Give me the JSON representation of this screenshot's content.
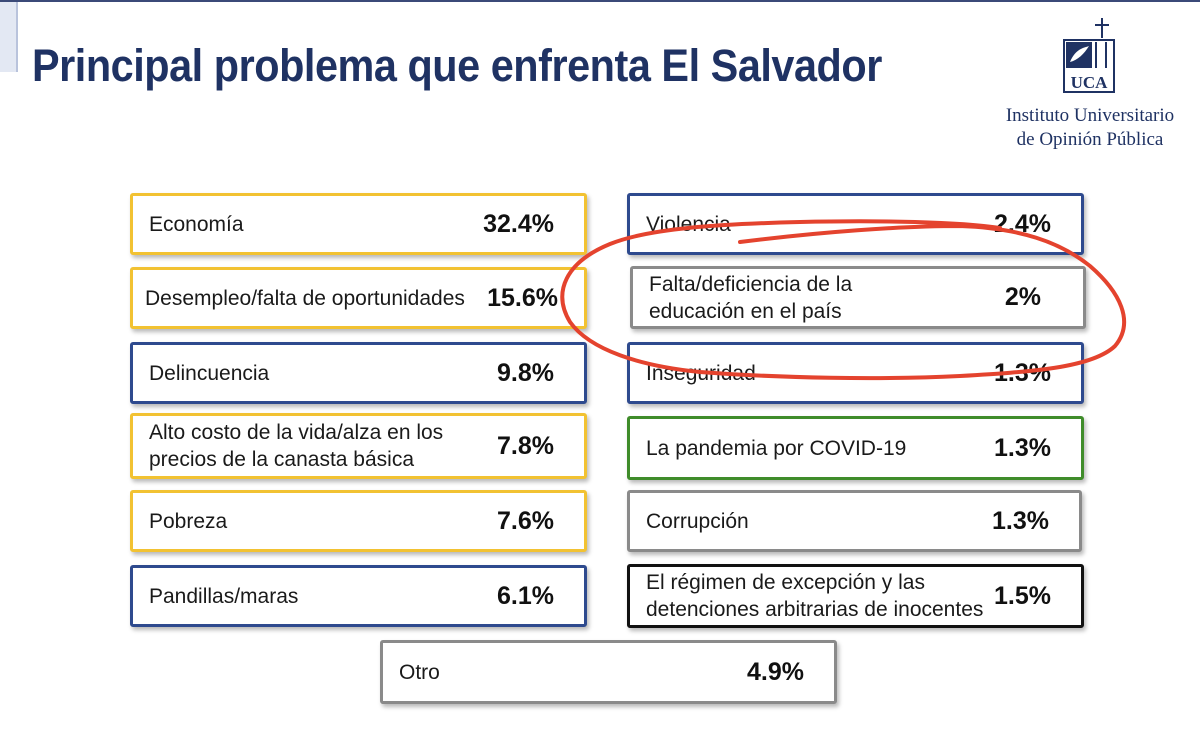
{
  "title": "Principal problema que enfrenta El Salvador",
  "institution": {
    "line1": "Instituto Universitario",
    "line2": "de Opinión Pública",
    "logo_letters": "UCA"
  },
  "items": [
    {
      "label": "Economía",
      "value": "32.4%",
      "color": "#f2c232"
    },
    {
      "label": "Desempleo/falta de oportunidades",
      "value": "15.6%",
      "color": "#f2c232"
    },
    {
      "label": "Delincuencia",
      "value": "9.8%",
      "color": "#2e4a8e"
    },
    {
      "label": "Alto costo de la vida/alza en los precios de la canasta básica",
      "value": "7.8%",
      "color": "#f2c232"
    },
    {
      "label": "Pobreza",
      "value": "7.6%",
      "color": "#f2c232"
    },
    {
      "label": "Pandillas/maras",
      "value": "6.1%",
      "color": "#2e4a8e"
    },
    {
      "label": "Violencia",
      "value": "2.4%",
      "color": "#2e4a8e"
    },
    {
      "label": "Falta/deficiencia de la educación en el país",
      "value": "2%",
      "color": "#8a8a8a"
    },
    {
      "label": "Inseguridad",
      "value": "1.3%",
      "color": "#2e4a8e"
    },
    {
      "label": "La pandemia por COVID-19",
      "value": "1.3%",
      "color": "#3f8c2a"
    },
    {
      "label": "Corrupción",
      "value": "1.3%",
      "color": "#8a8a8a"
    },
    {
      "label": "El régimen de excepción y las detenciones arbitrarias de inocentes",
      "value": "1.5%",
      "color": "#111111"
    },
    {
      "label": "Otro",
      "value": "4.9%",
      "color": "#8a8a8a"
    }
  ]
}
